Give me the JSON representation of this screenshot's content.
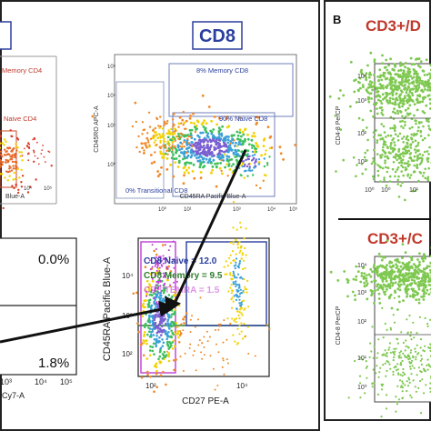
{
  "panels": {
    "cd8_header": "CD8",
    "b_label": "B",
    "b_top_title": "CD3+/D",
    "b_bottom_title": "CD3+/C"
  },
  "labels": {
    "memory_cd4": "Memory CD4",
    "naive_cd4": "Naive CD4",
    "memory_cd8": "8% Memory CD8",
    "naive_cd8": "90% Naive CD8",
    "transitional_cd8": "0% Transitional CD8",
    "cd8_naive_value": "CD8 Naive = 12.0",
    "cd8_memory_value": "CD8 Memory = 9.5",
    "cd8_temra_value": "CD8 TEMRA = 1.5",
    "quad_ur": "0.0%",
    "quad_lr": "1.8%"
  },
  "axes": {
    "cd45ro_apc": "CD45RO APC-A",
    "cd45ra_pb_small": "CD45RA Pacific Blue-A",
    "cd45ra_pb_large": "CD45RA Pacific Blue-A",
    "cd27_pe": "CD27 PE-A",
    "cy7_fragment": "Cy7-A",
    "cd4_8_percp_top": "CD4-8 PerCP",
    "cd4_8_percp_bottom": "CD4-8 PerCP",
    "tick_labels": [
      "10⁰",
      "10¹",
      "10²",
      "10³",
      "10⁴",
      "10⁵"
    ]
  },
  "colors": {
    "cd8_blue": "#2b3f9e",
    "memory_red": "#c0392b",
    "naive_green": "#2d7d2d",
    "temra_magenta": "#c23bd6",
    "dot_green": "#7ec850",
    "density_purple": "#7a5fd0",
    "density_orange": "#f08a2a",
    "density_yellow": "#f2d200",
    "arrow_black": "#111111"
  },
  "chart_data": [
    {
      "type": "scatter",
      "title": "CD8",
      "xlabel": "CD45RA Pacific Blue-A",
      "ylabel": "CD45RO APC-A",
      "xlim": [
        0,
        5
      ],
      "ylim": [
        0,
        5
      ],
      "scale": "log10",
      "gates": [
        {
          "name": "8% Memory CD8",
          "percent": 8
        },
        {
          "name": "90% Naive CD8",
          "percent": 90
        },
        {
          "name": "0% Transitional CD8",
          "percent": 0
        }
      ]
    },
    {
      "type": "scatter",
      "xlabel": "CD27 PE-A",
      "ylabel": "CD45RA Pacific Blue-A",
      "xlim": [
        0,
        5
      ],
      "ylim": [
        0,
        5
      ],
      "scale": "log10",
      "gates": [
        {
          "name": "CD8 Naive",
          "value": 12.0
        },
        {
          "name": "CD8 Memory",
          "value": 9.5
        },
        {
          "name": "CD8 TEMRA",
          "value": 1.5
        }
      ]
    },
    {
      "type": "scatter",
      "xlabel": "Cy7-A",
      "quadrants": [
        {
          "position": "upper-right",
          "percent": 0.0
        },
        {
          "position": "lower-right",
          "percent": 1.8
        }
      ]
    },
    {
      "type": "scatter",
      "title": "CD3+/D",
      "ylabel": "CD4-8 PerCP",
      "ylim": [
        0,
        4
      ],
      "scale": "log10"
    },
    {
      "type": "scatter",
      "title": "CD3+/C",
      "ylabel": "CD4-8 PerCP",
      "ylim": [
        0,
        4
      ],
      "scale": "log10"
    }
  ]
}
